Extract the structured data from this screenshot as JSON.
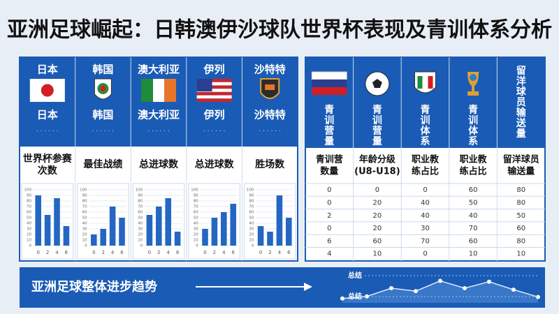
{
  "title": "亚洲足球崛起：日韩澳伊沙球队世界杯表现及青训体系分析",
  "countries": [
    {
      "name": "日本",
      "name2": "日本",
      "metric": [
        "世界杯参赛",
        "次数"
      ],
      "chart": {
        "categories": [
          "0",
          "2",
          "4",
          "6"
        ],
        "values": [
          90,
          55,
          85,
          35
        ],
        "ylim": [
          0,
          100
        ],
        "yticks": [
          0,
          10,
          20,
          30,
          40,
          50,
          60,
          70,
          80,
          90,
          100
        ]
      }
    },
    {
      "name": "韩国",
      "name2": "韩国",
      "metric": [
        "最佳战绩"
      ],
      "chart": {
        "categories": [
          "0",
          "2",
          "4",
          "6"
        ],
        "values": [
          20,
          30,
          70,
          50
        ],
        "ylim": [
          0,
          100
        ],
        "yticks": [
          0,
          10,
          20,
          30,
          40,
          50,
          60,
          70,
          80,
          90,
          100
        ]
      }
    },
    {
      "name": "澳大利亚",
      "name2": "澳大利亚",
      "metric": [
        "总进球数"
      ],
      "chart": {
        "categories": [
          "0",
          "2",
          "4",
          "6"
        ],
        "values": [
          55,
          70,
          85,
          25
        ],
        "ylim": [
          0,
          100
        ],
        "yticks": [
          0,
          10,
          20,
          30,
          40,
          50,
          60,
          70,
          80,
          90,
          100
        ]
      }
    },
    {
      "name": "伊列",
      "name2": "伊列",
      "metric": [
        "总进球数"
      ],
      "chart": {
        "categories": [
          "0",
          "2",
          "4",
          "6"
        ],
        "values": [
          30,
          50,
          60,
          75
        ],
        "ylim": [
          0,
          100
        ],
        "yticks": [
          0,
          10,
          20,
          30,
          40,
          50,
          60,
          70,
          80,
          90,
          100
        ]
      }
    },
    {
      "name": "沙特特",
      "name2": "沙特特",
      "metric": [
        "胜场数"
      ],
      "chart": {
        "categories": [
          "0",
          "2",
          "4",
          "6"
        ],
        "values": [
          35,
          25,
          90,
          50
        ],
        "ylim": [
          0,
          100
        ],
        "yticks": [
          0,
          10,
          20,
          30,
          40,
          50,
          60,
          70,
          80,
          90,
          100
        ]
      }
    }
  ],
  "youth": {
    "vertical": [
      "青训营量",
      "青训营量",
      "青训体系",
      "青训体系",
      "留洋球员输送量"
    ],
    "headers": [
      [
        "青训营",
        "数量"
      ],
      [
        "年龄分级",
        "(U8-U18)"
      ],
      [
        "职业教",
        "练占比"
      ],
      [
        "职业教",
        "练占比"
      ],
      [
        "留洋球员",
        "输送量"
      ]
    ],
    "rows": [
      [
        0,
        0,
        0,
        60,
        80
      ],
      [
        0,
        20,
        40,
        50,
        80
      ],
      [
        2,
        20,
        40,
        40,
        50
      ],
      [
        0,
        20,
        30,
        70,
        60
      ],
      [
        6,
        60,
        70,
        60,
        80
      ],
      [
        4,
        10,
        0,
        10,
        10
      ]
    ]
  },
  "banner": {
    "text": "亚洲足球整体进步趋势",
    "labels": [
      "总结",
      "总结"
    ],
    "trend": {
      "values": [
        15,
        22,
        50,
        40,
        75,
        50,
        72,
        45,
        20
      ],
      "ylim": [
        0,
        100
      ]
    }
  }
}
